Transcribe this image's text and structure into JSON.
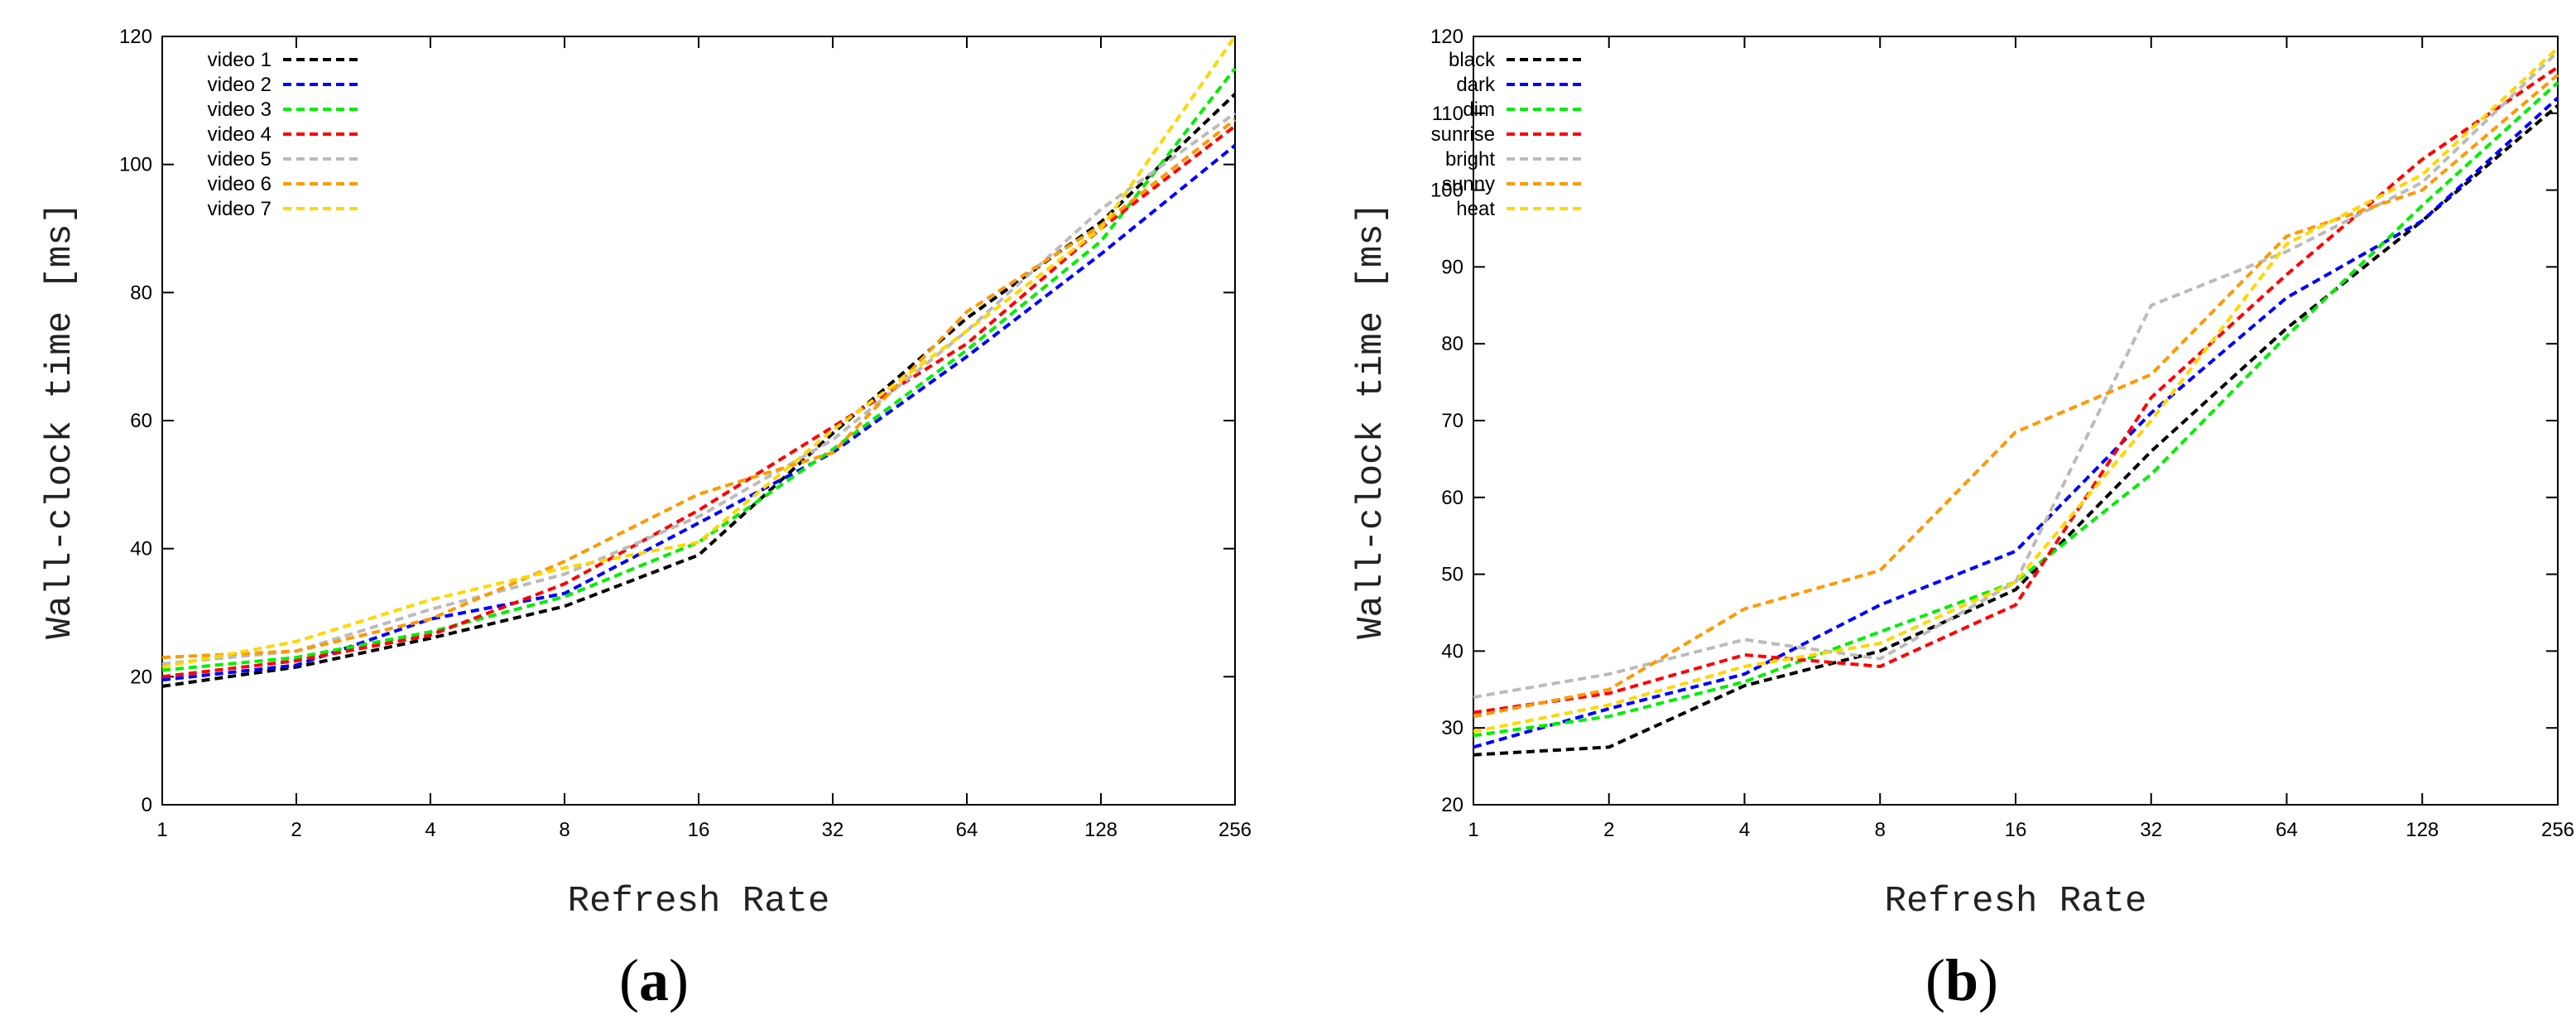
{
  "chart_data": [
    {
      "type": "line",
      "panel_label": "(a)",
      "panel_letter": "a",
      "xlabel": "Refresh Rate",
      "ylabel": "Wall-clock time [ms]",
      "x": [
        "1",
        "2",
        "4",
        "8",
        "16",
        "32",
        "64",
        "128",
        "256"
      ],
      "ylim": [
        0,
        120
      ],
      "yticks": [
        "0",
        "20",
        "40",
        "60",
        "80",
        "100",
        "120"
      ],
      "legend_position": "top-left",
      "series": [
        {
          "name": "video 1",
          "color": "#000000",
          "values": [
            18.5,
            21.5,
            26.0,
            31.0,
            39.0,
            58.0,
            76.0,
            91.0,
            111.0
          ]
        },
        {
          "name": "video 2",
          "color": "#0000ff",
          "values": [
            19.5,
            21.8,
            29.0,
            33.0,
            44.0,
            55.0,
            70.0,
            86.0,
            103.0
          ]
        },
        {
          "name": "video 3",
          "color": "#00ee00",
          "values": [
            21.0,
            23.0,
            27.0,
            32.5,
            41.0,
            55.5,
            71.0,
            88.0,
            115.0
          ]
        },
        {
          "name": "video 4",
          "color": "#ff0000",
          "values": [
            20.0,
            22.5,
            26.5,
            34.5,
            46.0,
            59.0,
            72.0,
            90.0,
            106.0
          ]
        },
        {
          "name": "video 5",
          "color": "#bbbbbb",
          "values": [
            22.0,
            24.0,
            30.5,
            36.0,
            45.0,
            57.0,
            74.0,
            93.0,
            108.0
          ]
        },
        {
          "name": "video 6",
          "color": "#ff9900",
          "values": [
            23.0,
            24.0,
            29.0,
            38.0,
            48.5,
            55.0,
            77.0,
            90.5,
            107.0
          ]
        },
        {
          "name": "video 7",
          "color": "#ffd700",
          "values": [
            21.5,
            25.5,
            32.0,
            37.0,
            41.0,
            58.5,
            74.0,
            90.0,
            120.0
          ]
        }
      ]
    },
    {
      "type": "line",
      "panel_label": "(b)",
      "panel_letter": "b",
      "xlabel": "Refresh Rate",
      "ylabel": "Wall-clock time [ms]",
      "x": [
        "1",
        "2",
        "4",
        "8",
        "16",
        "32",
        "64",
        "128",
        "256"
      ],
      "ylim": [
        20,
        120
      ],
      "yticks": [
        "20",
        "30",
        "40",
        "50",
        "60",
        "70",
        "80",
        "90",
        "100",
        "110",
        "120"
      ],
      "legend_position": "top-left",
      "series": [
        {
          "name": "black",
          "color": "#000000",
          "values": [
            26.5,
            27.5,
            35.5,
            40.0,
            48.0,
            66.0,
            82.0,
            96.0,
            111.0
          ]
        },
        {
          "name": "dark",
          "color": "#0000ff",
          "values": [
            27.5,
            32.5,
            37.0,
            46.0,
            53.0,
            71.0,
            86.0,
            96.0,
            112.0
          ]
        },
        {
          "name": "dim",
          "color": "#00ee00",
          "values": [
            29.0,
            31.5,
            36.0,
            42.5,
            49.0,
            63.0,
            81.0,
            98.0,
            114.0
          ]
        },
        {
          "name": "sunrise",
          "color": "#ff0000",
          "values": [
            32.0,
            34.5,
            39.5,
            38.0,
            46.0,
            73.0,
            89.0,
            104.0,
            116.0
          ]
        },
        {
          "name": "bright",
          "color": "#bbbbbb",
          "values": [
            34.0,
            37.0,
            41.5,
            39.0,
            49.0,
            85.0,
            92.0,
            101.0,
            118.0
          ]
        },
        {
          "name": "sunny",
          "color": "#ff9900",
          "values": [
            31.5,
            35.0,
            45.5,
            50.5,
            68.5,
            76.0,
            94.0,
            100.0,
            115.0
          ]
        },
        {
          "name": "heat",
          "color": "#ffd700",
          "values": [
            29.5,
            33.0,
            38.0,
            41.0,
            49.0,
            70.0,
            93.0,
            102.0,
            118.5
          ]
        }
      ]
    }
  ]
}
